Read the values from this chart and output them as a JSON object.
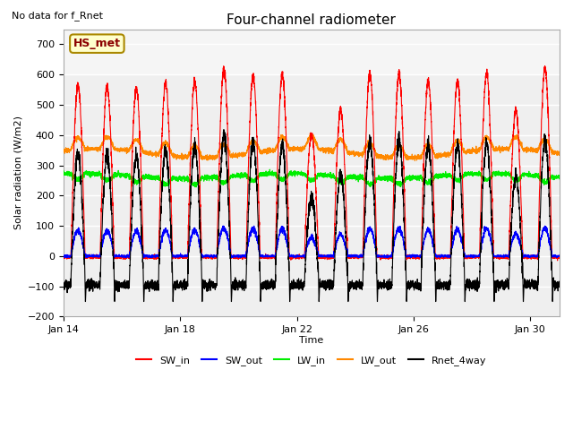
{
  "title": "Four-channel radiometer",
  "title_fontsize": 11,
  "top_left_note": "No data for f_Rnet",
  "box_label": "HS_met",
  "xlabel": "Time",
  "ylabel": "Solar radiation (W/m2)",
  "ylim": [
    -200,
    750
  ],
  "yticks": [
    -200,
    -100,
    0,
    100,
    200,
    300,
    400,
    500,
    600,
    700
  ],
  "xtick_labels": [
    "Jan 14",
    "Jan 18",
    "Jan 22",
    "Jan 26",
    "Jan 30"
  ],
  "xtick_positions": [
    0,
    4,
    8,
    12,
    16
  ],
  "lines": {
    "SW_in": {
      "color": "#ff0000"
    },
    "SW_out": {
      "color": "#0000ff"
    },
    "LW_in": {
      "color": "#00ee00"
    },
    "LW_out": {
      "color": "#ff8800"
    },
    "Rnet_4way": {
      "color": "#000000"
    }
  },
  "legend_colors": [
    "#ff0000",
    "#0000ff",
    "#00ee00",
    "#ff8800",
    "#000000"
  ],
  "legend_labels": [
    "SW_in",
    "SW_out",
    "LW_in",
    "LW_out",
    "Rnet_4way"
  ],
  "num_days": 17,
  "day_peaks_SW_in": [
    565,
    560,
    555,
    570,
    575,
    620,
    595,
    600,
    400,
    480,
    605,
    600,
    575,
    580,
    605,
    480,
    620
  ],
  "plot_bg": "#efefef",
  "fig_bg": "#ffffff",
  "grid_color": "#cccccc"
}
